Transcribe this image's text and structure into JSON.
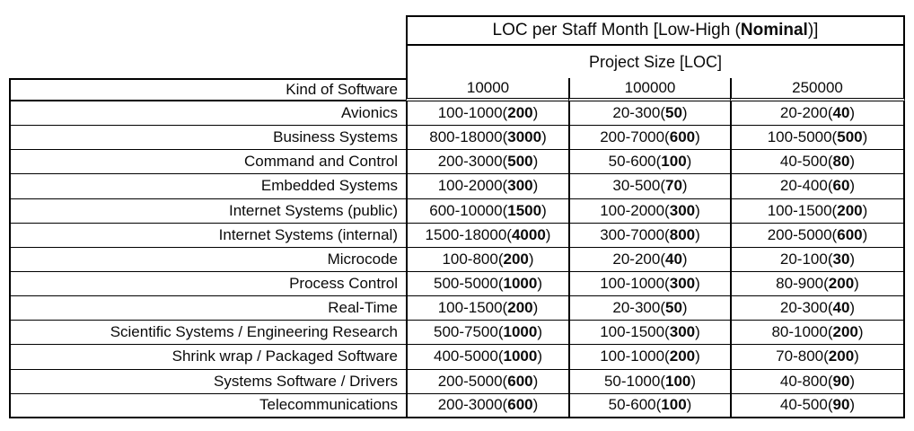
{
  "header": {
    "title_pre": "LOC per Staff Month [Low-High (",
    "title_bold": "Nominal",
    "title_post": ")]"
  },
  "chart_data": {
    "type": "table",
    "title": "LOC per Staff Month [Low-High (Nominal)]",
    "subtitle": "Project Size [LOC]",
    "row_header": "Kind of Software",
    "columns": [
      "10000",
      "100000",
      "250000"
    ],
    "value_format": "low-high(nominal)",
    "rows": [
      {
        "kind": "Avionics",
        "cells": [
          {
            "low": 100,
            "high": 1000,
            "nominal": 200
          },
          {
            "low": 20,
            "high": 300,
            "nominal": 50
          },
          {
            "low": 20,
            "high": 200,
            "nominal": 40
          }
        ]
      },
      {
        "kind": "Business Systems",
        "cells": [
          {
            "low": 800,
            "high": 18000,
            "nominal": 3000
          },
          {
            "low": 200,
            "high": 7000,
            "nominal": 600
          },
          {
            "low": 100,
            "high": 5000,
            "nominal": 500
          }
        ]
      },
      {
        "kind": "Command and Control",
        "cells": [
          {
            "low": 200,
            "high": 3000,
            "nominal": 500
          },
          {
            "low": 50,
            "high": 600,
            "nominal": 100
          },
          {
            "low": 40,
            "high": 500,
            "nominal": 80
          }
        ]
      },
      {
        "kind": "Embedded Systems",
        "cells": [
          {
            "low": 100,
            "high": 2000,
            "nominal": 300
          },
          {
            "low": 30,
            "high": 500,
            "nominal": 70
          },
          {
            "low": 20,
            "high": 400,
            "nominal": 60
          }
        ]
      },
      {
        "kind": "Internet Systems (public)",
        "cells": [
          {
            "low": 600,
            "high": 10000,
            "nominal": 1500
          },
          {
            "low": 100,
            "high": 2000,
            "nominal": 300
          },
          {
            "low": 100,
            "high": 1500,
            "nominal": 200
          }
        ]
      },
      {
        "kind": "Internet Systems (internal)",
        "cells": [
          {
            "low": 1500,
            "high": 18000,
            "nominal": 4000
          },
          {
            "low": 300,
            "high": 7000,
            "nominal": 800
          },
          {
            "low": 200,
            "high": 5000,
            "nominal": 600
          }
        ]
      },
      {
        "kind": "Microcode",
        "cells": [
          {
            "low": 100,
            "high": 800,
            "nominal": 200
          },
          {
            "low": 20,
            "high": 200,
            "nominal": 40
          },
          {
            "low": 20,
            "high": 100,
            "nominal": 30
          }
        ]
      },
      {
        "kind": "Process Control",
        "cells": [
          {
            "low": 500,
            "high": 5000,
            "nominal": 1000
          },
          {
            "low": 100,
            "high": 1000,
            "nominal": 300
          },
          {
            "low": 80,
            "high": 900,
            "nominal": 200
          }
        ]
      },
      {
        "kind": "Real-Time",
        "cells": [
          {
            "low": 100,
            "high": 1500,
            "nominal": 200
          },
          {
            "low": 20,
            "high": 300,
            "nominal": 50
          },
          {
            "low": 20,
            "high": 300,
            "nominal": 40
          }
        ]
      },
      {
        "kind": "Scientific Systems / Engineering Research",
        "cells": [
          {
            "low": 500,
            "high": 7500,
            "nominal": 1000
          },
          {
            "low": 100,
            "high": 1500,
            "nominal": 300
          },
          {
            "low": 80,
            "high": 1000,
            "nominal": 200
          }
        ]
      },
      {
        "kind": "Shrink wrap / Packaged Software",
        "cells": [
          {
            "low": 400,
            "high": 5000,
            "nominal": 1000
          },
          {
            "low": 100,
            "high": 1000,
            "nominal": 200
          },
          {
            "low": 70,
            "high": 800,
            "nominal": 200
          }
        ]
      },
      {
        "kind": "Systems Software / Drivers",
        "cells": [
          {
            "low": 200,
            "high": 5000,
            "nominal": 600
          },
          {
            "low": 50,
            "high": 1000,
            "nominal": 100
          },
          {
            "low": 40,
            "high": 800,
            "nominal": 90
          }
        ]
      },
      {
        "kind": "Telecommunications",
        "cells": [
          {
            "low": 200,
            "high": 3000,
            "nominal": 600
          },
          {
            "low": 50,
            "high": 600,
            "nominal": 100
          },
          {
            "low": 40,
            "high": 500,
            "nominal": 90
          }
        ]
      }
    ]
  },
  "colors": {
    "background": "#ffffff",
    "border": "#000000",
    "text": "#0b0b0b"
  }
}
